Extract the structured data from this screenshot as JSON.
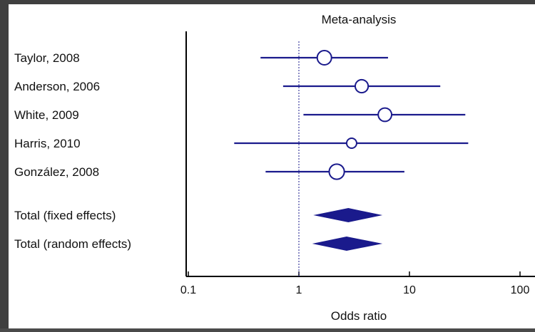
{
  "chart_data": {
    "type": "forest",
    "title": "Meta-analysis",
    "xlabel": "Odds ratio",
    "x_scale": "log",
    "xlim": [
      0.1,
      100
    ],
    "xticks": [
      0.1,
      1,
      10,
      100
    ],
    "xtick_labels": [
      "0.1",
      "1",
      "10",
      "100"
    ],
    "reference_line": 1,
    "studies": [
      {
        "label": "Taylor, 2008",
        "or": 1.7,
        "ci": [
          0.45,
          6.4
        ],
        "weight": 1.0
      },
      {
        "label": "Anderson, 2006",
        "or": 3.7,
        "ci": [
          0.72,
          19
        ],
        "weight": 0.85
      },
      {
        "label": "White, 2009",
        "or": 6.0,
        "ci": [
          1.1,
          32
        ],
        "weight": 0.9
      },
      {
        "label": "Harris, 2010",
        "or": 3.0,
        "ci": [
          0.26,
          34
        ],
        "weight": 0.5
      },
      {
        "label": "González, 2008",
        "or": 2.2,
        "ci": [
          0.5,
          9.0
        ],
        "weight": 1.1
      }
    ],
    "totals": [
      {
        "label": "Total (fixed effects)",
        "or": 2.8,
        "ci": [
          1.35,
          5.7
        ]
      },
      {
        "label": "Total (random effects)",
        "or": 2.7,
        "ci": [
          1.32,
          5.7
        ]
      }
    ]
  },
  "colors": {
    "series": "#1a1a8c",
    "axis": "#000000",
    "reference": "#1a1a8c"
  }
}
